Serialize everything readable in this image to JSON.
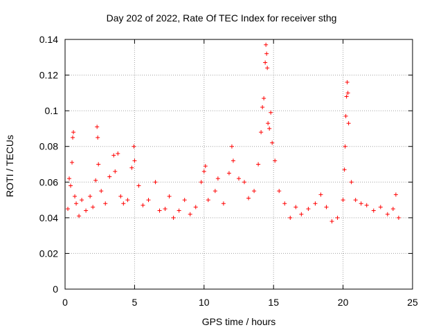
{
  "chart_data": {
    "type": "scatter",
    "title": "Day 202 of 2022, Rate Of TEC Index for receiver sthg",
    "xlabel": "GPS time / hours",
    "ylabel": "ROTI / TECUs",
    "xlim": [
      0,
      25
    ],
    "ylim": [
      0,
      0.14
    ],
    "x_ticks": [
      0,
      5,
      10,
      15,
      20,
      25
    ],
    "x_tick_labels": [
      "0",
      "5",
      "10",
      "15",
      "20",
      "25"
    ],
    "y_ticks": [
      0,
      0.02,
      0.04,
      0.06,
      0.08,
      0.1,
      0.12,
      0.14
    ],
    "y_tick_labels": [
      "0",
      "0.02",
      "0.04",
      "0.06",
      "0.08",
      "0.1",
      "0.12",
      "0.14"
    ],
    "grid": true,
    "marker": "+",
    "color": "#ff0000",
    "series": [
      {
        "name": "ROTI",
        "points": [
          [
            0.2,
            0.045
          ],
          [
            0.3,
            0.062
          ],
          [
            0.4,
            0.058
          ],
          [
            0.5,
            0.071
          ],
          [
            0.55,
            0.085
          ],
          [
            0.6,
            0.088
          ],
          [
            0.7,
            0.052
          ],
          [
            0.8,
            0.048
          ],
          [
            1.0,
            0.041
          ],
          [
            1.2,
            0.05
          ],
          [
            1.5,
            0.044
          ],
          [
            1.8,
            0.052
          ],
          [
            2.0,
            0.046
          ],
          [
            2.2,
            0.061
          ],
          [
            2.3,
            0.091
          ],
          [
            2.35,
            0.085
          ],
          [
            2.4,
            0.07
          ],
          [
            2.6,
            0.055
          ],
          [
            2.9,
            0.048
          ],
          [
            3.2,
            0.063
          ],
          [
            3.5,
            0.075
          ],
          [
            3.6,
            0.066
          ],
          [
            3.8,
            0.076
          ],
          [
            4.0,
            0.052
          ],
          [
            4.2,
            0.048
          ],
          [
            4.5,
            0.05
          ],
          [
            4.8,
            0.068
          ],
          [
            4.95,
            0.08
          ],
          [
            5.0,
            0.072
          ],
          [
            5.3,
            0.058
          ],
          [
            5.6,
            0.047
          ],
          [
            6.0,
            0.05
          ],
          [
            6.5,
            0.06
          ],
          [
            6.8,
            0.044
          ],
          [
            7.2,
            0.045
          ],
          [
            7.5,
            0.052
          ],
          [
            7.8,
            0.04
          ],
          [
            8.2,
            0.044
          ],
          [
            8.6,
            0.05
          ],
          [
            9.0,
            0.042
          ],
          [
            9.4,
            0.046
          ],
          [
            9.8,
            0.06
          ],
          [
            10.0,
            0.066
          ],
          [
            10.1,
            0.069
          ],
          [
            10.3,
            0.05
          ],
          [
            10.8,
            0.055
          ],
          [
            11.0,
            0.062
          ],
          [
            11.4,
            0.048
          ],
          [
            11.8,
            0.065
          ],
          [
            12.0,
            0.08
          ],
          [
            12.1,
            0.072
          ],
          [
            12.5,
            0.062
          ],
          [
            12.9,
            0.06
          ],
          [
            13.2,
            0.051
          ],
          [
            13.6,
            0.055
          ],
          [
            13.9,
            0.07
          ],
          [
            14.1,
            0.088
          ],
          [
            14.2,
            0.102
          ],
          [
            14.3,
            0.107
          ],
          [
            14.4,
            0.127
          ],
          [
            14.45,
            0.137
          ],
          [
            14.5,
            0.132
          ],
          [
            14.55,
            0.124
          ],
          [
            14.6,
            0.093
          ],
          [
            14.7,
            0.09
          ],
          [
            14.8,
            0.099
          ],
          [
            14.9,
            0.082
          ],
          [
            15.1,
            0.072
          ],
          [
            15.4,
            0.055
          ],
          [
            15.8,
            0.048
          ],
          [
            16.2,
            0.04
          ],
          [
            16.6,
            0.046
          ],
          [
            17.0,
            0.042
          ],
          [
            17.5,
            0.045
          ],
          [
            18.0,
            0.048
          ],
          [
            18.4,
            0.053
          ],
          [
            18.8,
            0.046
          ],
          [
            19.2,
            0.038
          ],
          [
            19.6,
            0.04
          ],
          [
            20.0,
            0.05
          ],
          [
            20.1,
            0.067
          ],
          [
            20.15,
            0.08
          ],
          [
            20.2,
            0.097
          ],
          [
            20.25,
            0.108
          ],
          [
            20.3,
            0.116
          ],
          [
            20.35,
            0.11
          ],
          [
            20.4,
            0.093
          ],
          [
            20.6,
            0.06
          ],
          [
            20.9,
            0.05
          ],
          [
            21.3,
            0.048
          ],
          [
            21.7,
            0.047
          ],
          [
            22.2,
            0.044
          ],
          [
            22.7,
            0.046
          ],
          [
            23.2,
            0.042
          ],
          [
            23.6,
            0.045
          ],
          [
            23.8,
            0.053
          ],
          [
            24.0,
            0.04
          ]
        ]
      }
    ]
  }
}
